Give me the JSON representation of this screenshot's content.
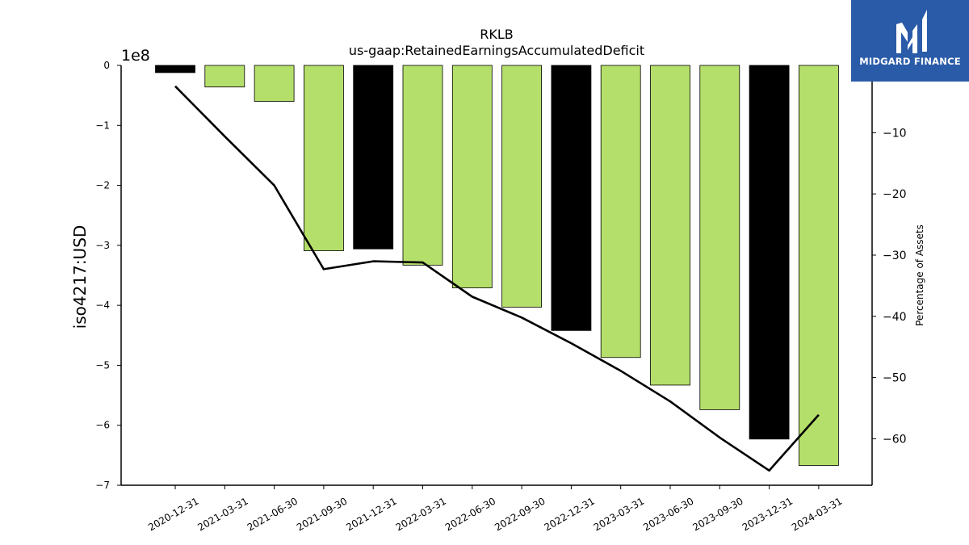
{
  "brand": {
    "name": "MIDGARD FINANCE",
    "logo_icon": "midgard-m-logo-icon",
    "background_color": "#2a5ba8"
  },
  "chart_data": {
    "type": "bar",
    "title": "RKLB",
    "subtitle": "us-gaap:RetainedEarningsAccumulatedDeficit",
    "ylabel": "iso4217:USD",
    "y2label": "Percentage of Assets",
    "y_offset_label": "1e8",
    "categories": [
      "2020-12-31",
      "2021-03-31",
      "2021-06-30",
      "2021-09-30",
      "2021-12-31",
      "2022-03-31",
      "2022-06-30",
      "2022-09-30",
      "2022-12-31",
      "2023-03-31",
      "2023-06-30",
      "2023-09-30",
      "2023-12-31",
      "2024-03-31"
    ],
    "series": [
      {
        "values": [
          -12000000,
          -36000000,
          -60000000,
          -309000000,
          -306000000,
          -333000000,
          -371000000,
          -403000000,
          -442000000,
          -487000000,
          -533000000,
          -574000000,
          -623000000,
          -667000000
        ],
        "bar_colors": [
          "#000000",
          "#b5df6b",
          "#b5df6b",
          "#b5df6b",
          "#000000",
          "#b5df6b",
          "#b5df6b",
          "#b5df6b",
          "#000000",
          "#b5df6b",
          "#b5df6b",
          "#b5df6b",
          "#000000",
          "#b5df6b"
        ]
      },
      {
        "type": "line",
        "axis": "right",
        "color": "#000000",
        "values": [
          -2.4,
          -10.6,
          -18.6,
          -32.3,
          -31.0,
          -31.2,
          -36.8,
          -40.2,
          -44.4,
          -48.9,
          -53.9,
          -59.8,
          -65.2,
          -56.1
        ]
      }
    ],
    "ylim": [
      -700000000,
      0
    ],
    "y_ticks": [
      0,
      -1,
      -2,
      -3,
      -4,
      -5,
      -6,
      -7
    ],
    "y2lim": [
      -67.6,
      1.0
    ],
    "y2_ticks": [
      -10,
      -20,
      -30,
      -40,
      -50,
      -60
    ],
    "grid": false,
    "legend": "none"
  }
}
